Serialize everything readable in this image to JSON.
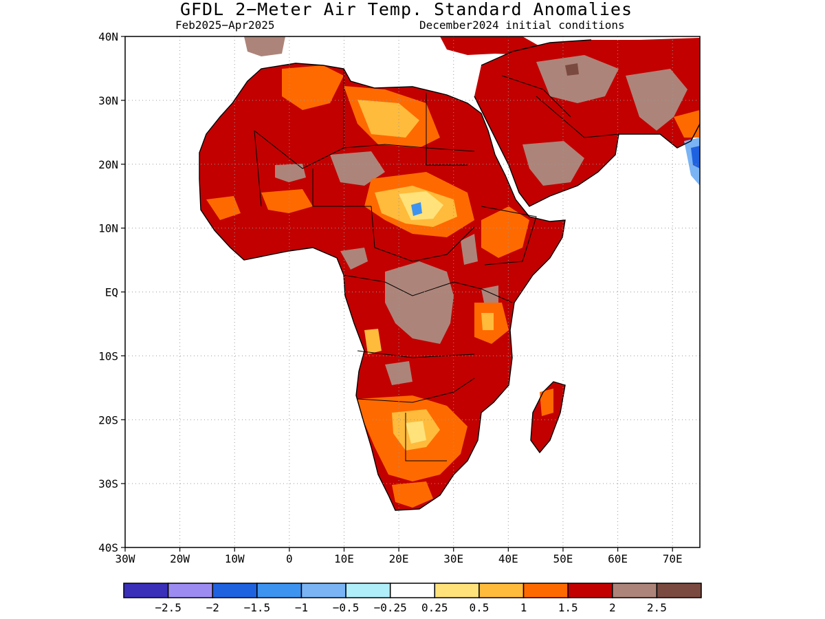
{
  "title": "GFDL 2−Meter Air Temp. Standard Anomalies",
  "subtitle_left": "Feb2025−Apr2025",
  "subtitle_right": "December2024 initial conditions",
  "axes": {
    "lat_labels": [
      "40N",
      "30N",
      "20N",
      "10N",
      "EQ",
      "10S",
      "20S",
      "30S",
      "40S"
    ],
    "lon_labels": [
      "30W",
      "20W",
      "10W",
      "0",
      "10E",
      "20E",
      "30E",
      "40E",
      "50E",
      "60E",
      "70E"
    ],
    "lat_range": [
      -40,
      40
    ],
    "lon_range": [
      -30,
      75
    ],
    "gridlines": "dotted"
  },
  "colorbar": {
    "colors": [
      "#3a2fb8",
      "#9c8cf2",
      "#1f62e0",
      "#3d93f0",
      "#7ab4f5",
      "#b0eef9",
      "#ffffff",
      "#ffe27a",
      "#ffbb3c",
      "#ff6a00",
      "#c20000",
      "#ad8479",
      "#7a4a40"
    ],
    "labels": [
      "−2.5",
      "−2",
      "−1.5",
      "−1",
      "−0.5",
      "−0.25",
      "0.25",
      "0.5",
      "1",
      "1.5",
      "2",
      "2.5"
    ]
  }
}
